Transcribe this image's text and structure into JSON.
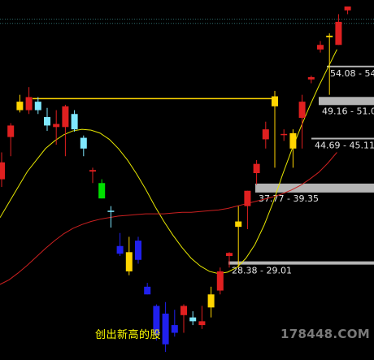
{
  "caption": "创出新高的股",
  "watermark": "178448.COM",
  "colors": {
    "background": "#000000",
    "up": "#e02020",
    "down": "#2020ee",
    "cyan": "#7fe8ff",
    "green": "#00e000",
    "yellow": "#ffd500",
    "yellow_line": "#e6e600",
    "red_line": "#cc2020",
    "zone_bar": "#b4b4b4",
    "dotted_line": "#2f6f6f",
    "horizontal_line": "#ffd800"
  },
  "chart_data": {
    "type": "candlestick",
    "y_range": [
      24,
      62
    ],
    "price_zones": [
      {
        "label": "54.08 - 54",
        "low": 54.08
      },
      {
        "label": "49.16 - 51.0",
        "low": 49.16
      },
      {
        "label": "44.69 - 45.11",
        "low": 44.69
      },
      {
        "label": "37.77 - 39.35",
        "low": 37.77
      },
      {
        "label": "28.38 - 29.01",
        "low": 28.38
      }
    ],
    "horizontal_line_price": 50.0,
    "upper_dotted_prices": [
      60.35,
      59.8
    ],
    "moving_averages": [
      {
        "name": "yellow",
        "values": [
          34.5,
          36.5,
          38.5,
          40.5,
          42,
          43.5,
          44.5,
          45.3,
          45.8,
          46,
          45.9,
          45.5,
          44.7,
          43.5,
          42,
          40.2,
          38.2,
          36,
          34,
          32.2,
          30.6,
          29.2,
          28.2,
          27.5,
          27.2,
          27.4,
          28,
          29.2,
          31,
          33.5,
          36.5,
          40,
          43.2,
          46.2,
          49,
          51.6,
          54,
          56.4
        ]
      },
      {
        "name": "red",
        "values": [
          25.8,
          26.4,
          27.3,
          28.3,
          29.4,
          30.5,
          31.5,
          32.4,
          33.1,
          33.6,
          34,
          34.3,
          34.5,
          34.7,
          34.8,
          34.9,
          35,
          35,
          35,
          35.1,
          35.2,
          35.2,
          35.3,
          35.4,
          35.5,
          35.7,
          36,
          36.3,
          36.6,
          36.9,
          37.2,
          37.6,
          38.1,
          38.7,
          39.5,
          40.4,
          41.6,
          43
        ]
      }
    ],
    "candles": [
      {
        "o": 39.5,
        "h": 43.0,
        "l": 38.5,
        "c": 41.7,
        "color": "up"
      },
      {
        "o": 45.0,
        "h": 46.8,
        "l": 42.5,
        "c": 46.5,
        "color": "up"
      },
      {
        "o": 48.5,
        "h": 50.5,
        "l": 48.2,
        "c": 49.6,
        "color": "yellow"
      },
      {
        "o": 48.5,
        "h": 51.5,
        "l": 48.0,
        "c": 50.2,
        "color": "up"
      },
      {
        "o": 49.6,
        "h": 50.2,
        "l": 48.0,
        "c": 48.5,
        "color": "cyan"
      },
      {
        "o": 47.6,
        "h": 48.8,
        "l": 45.8,
        "c": 46.5,
        "color": "cyan"
      },
      {
        "o": 46.7,
        "h": 48.5,
        "l": 44.0,
        "c": 46.3,
        "color": "up"
      },
      {
        "o": 46.3,
        "h": 49.2,
        "l": 42.5,
        "c": 49.0,
        "color": "up"
      },
      {
        "o": 48.0,
        "h": 48.5,
        "l": 45.7,
        "c": 46.0,
        "color": "cyan"
      },
      {
        "o": 44.9,
        "h": 45.2,
        "l": 42.5,
        "c": 43.5,
        "color": "cyan"
      },
      {
        "o": 40.7,
        "h": 41.0,
        "l": 39.0,
        "c": 40.5,
        "color": "up"
      },
      {
        "o": 39.0,
        "h": 39.5,
        "l": 37.0,
        "c": 37.0,
        "color": "green"
      },
      {
        "o": 35.4,
        "h": 36.0,
        "l": 33.2,
        "c": 35.4,
        "color": "cyan"
      },
      {
        "o": 30.8,
        "h": 32.5,
        "l": 29.5,
        "c": 29.8,
        "color": "down"
      },
      {
        "o": 30.0,
        "h": 32.0,
        "l": 27.0,
        "c": 27.5,
        "color": "yellow"
      },
      {
        "o": 31.5,
        "h": 32.0,
        "l": 28.5,
        "c": 29.0,
        "color": "down"
      },
      {
        "o": 25.5,
        "h": 26.0,
        "l": 24.5,
        "c": 24.5,
        "color": "down"
      },
      {
        "o": 23.0,
        "h": 23.2,
        "l": 18.5,
        "c": 19.2,
        "color": "down"
      },
      {
        "o": 22.0,
        "h": 23.5,
        "l": 17.0,
        "c": 18.0,
        "color": "down"
      },
      {
        "o": 20.5,
        "h": 22.5,
        "l": 19.0,
        "c": 19.5,
        "color": "down"
      },
      {
        "o": 21.8,
        "h": 23.2,
        "l": 19.5,
        "c": 23.0,
        "color": "up"
      },
      {
        "o": 21.5,
        "h": 22.3,
        "l": 20.5,
        "c": 21.0,
        "color": "cyan"
      },
      {
        "o": 20.5,
        "h": 23.0,
        "l": 20.0,
        "c": 21.0,
        "color": "up"
      },
      {
        "o": 22.8,
        "h": 25.5,
        "l": 21.5,
        "c": 24.5,
        "color": "yellow"
      },
      {
        "o": 25.0,
        "h": 28.0,
        "l": 24.5,
        "c": 27.5,
        "color": "up"
      },
      {
        "o": 29.5,
        "h": 30.0,
        "l": 28.0,
        "c": 29.9,
        "color": "up"
      },
      {
        "o": 33.3,
        "h": 36.0,
        "l": 28.0,
        "c": 34.0,
        "color": "yellow"
      },
      {
        "o": 36.0,
        "h": 38.0,
        "l": 33.0,
        "c": 38.0,
        "color": "up"
      },
      {
        "o": 40.3,
        "h": 42.0,
        "l": 38.8,
        "c": 41.5,
        "color": "up"
      },
      {
        "o": 44.7,
        "h": 47.0,
        "l": 43.5,
        "c": 46.0,
        "color": "up"
      },
      {
        "o": 49.0,
        "h": 51.0,
        "l": 41.0,
        "c": 50.3,
        "color": "yellow"
      },
      {
        "o": 45.4,
        "h": 46.0,
        "l": 44.5,
        "c": 45.4,
        "color": "up"
      },
      {
        "o": 43.5,
        "h": 46.0,
        "l": 41.0,
        "c": 45.5,
        "color": "yellow"
      },
      {
        "o": 47.5,
        "h": 50.5,
        "l": 43.5,
        "c": 49.6,
        "color": "up"
      },
      {
        "o": 52.5,
        "h": 53.0,
        "l": 52.0,
        "c": 52.8,
        "color": "up"
      },
      {
        "o": 57.0,
        "h": 57.5,
        "l": 56.0,
        "c": 56.4,
        "color": "up"
      },
      {
        "o": 58.0,
        "h": 58.5,
        "l": 50.5,
        "c": 58.2,
        "color": "yellow"
      },
      {
        "o": 57.0,
        "h": 61.0,
        "l": 57.0,
        "c": 60.0,
        "color": "up"
      },
      {
        "o": 61.5,
        "h": 62.0,
        "l": 61.0,
        "c": 62.0,
        "color": "up"
      }
    ]
  }
}
